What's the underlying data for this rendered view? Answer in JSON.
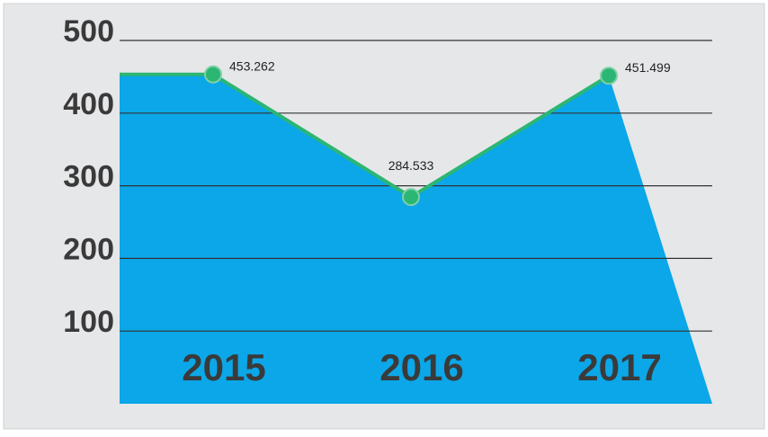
{
  "chart_data": {
    "type": "area",
    "categories": [
      "2015",
      "2016",
      "2017"
    ],
    "values": [
      453.262,
      284.533,
      451.499
    ],
    "color": "#0ba7e8",
    "line_color": "#2bb673",
    "ylim": [
      0,
      500
    ],
    "yticks": [
      100,
      200,
      300,
      400,
      500
    ],
    "grid": true
  }
}
